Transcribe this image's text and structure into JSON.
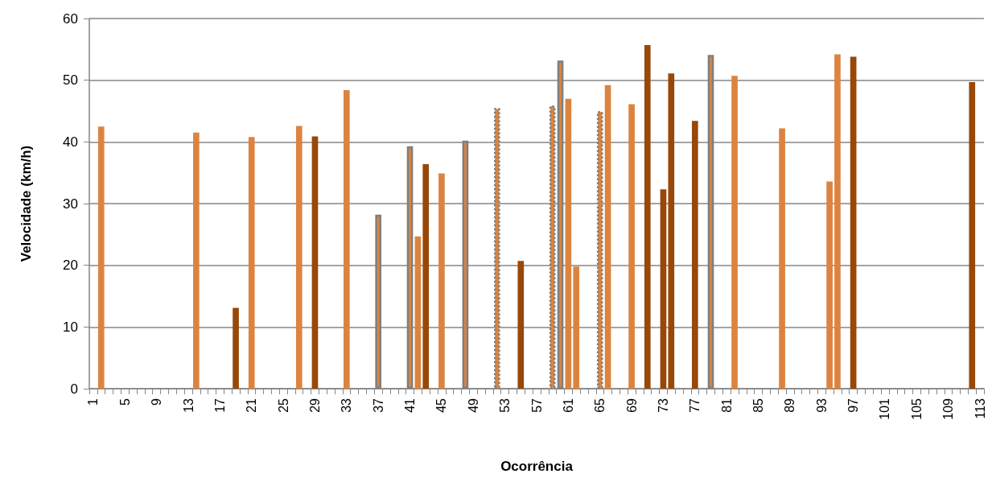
{
  "chart_data": {
    "type": "bar",
    "xlabel": "Ocorrência",
    "ylabel": "Velocidade (km/h)",
    "categories": [
      "1",
      null,
      null,
      null,
      "5",
      null,
      null,
      null,
      "9",
      null,
      null,
      null,
      "13",
      null,
      null,
      null,
      "17",
      null,
      null,
      null,
      "21",
      null,
      null,
      null,
      "25",
      null,
      null,
      null,
      "29",
      null,
      null,
      null,
      "33",
      null,
      null,
      null,
      "37",
      null,
      null,
      null,
      "41",
      null,
      null,
      null,
      "45",
      null,
      null,
      null,
      "49",
      null,
      null,
      null,
      "53",
      null,
      null,
      null,
      "57",
      null,
      null,
      null,
      "61",
      null,
      null,
      null,
      "65",
      null,
      null,
      null,
      "69",
      null,
      null,
      null,
      "73",
      null,
      null,
      null,
      "77",
      null,
      null,
      null,
      "81",
      null,
      null,
      null,
      "85",
      null,
      null,
      null,
      "89",
      null,
      null,
      null,
      "93",
      null,
      null,
      null,
      "97",
      null,
      null,
      null,
      "101",
      null,
      null,
      null,
      "105",
      null,
      null,
      null,
      "109",
      null,
      null,
      null,
      "113"
    ],
    "series": [
      {
        "color": "#dc843f",
        "values": [
          null,
          42.5,
          null,
          null,
          null,
          null,
          null,
          null,
          null,
          null,
          null,
          null,
          null,
          41.5,
          null,
          null,
          null,
          null,
          null,
          null,
          40.8,
          null,
          null,
          null,
          null,
          null,
          42.6,
          null,
          null,
          null,
          null,
          null,
          48.4,
          null,
          null,
          null,
          null,
          null,
          null,
          null,
          null,
          24.7,
          null,
          null,
          34.9,
          null,
          null,
          null,
          null,
          null,
          null,
          null,
          null,
          null,
          null,
          null,
          null,
          null,
          null,
          null,
          47.0,
          19.8,
          null,
          null,
          null,
          49.2,
          null,
          null,
          46.1,
          null,
          null,
          null,
          null,
          null,
          null,
          null,
          null,
          null,
          null,
          null,
          null,
          50.7,
          null,
          null,
          null,
          null,
          null,
          42.2,
          null,
          null,
          null,
          null,
          null,
          33.6,
          54.2,
          null,
          null,
          null,
          null,
          null,
          null,
          null,
          null,
          null,
          null,
          null,
          null,
          null,
          null,
          null,
          null,
          null,
          null
        ]
      },
      {
        "color": "#984808",
        "values": [
          null,
          null,
          null,
          null,
          null,
          null,
          null,
          null,
          null,
          null,
          null,
          null,
          null,
          null,
          null,
          null,
          null,
          null,
          13.1,
          null,
          null,
          null,
          null,
          null,
          null,
          null,
          null,
          null,
          40.9,
          null,
          null,
          null,
          null,
          null,
          null,
          null,
          null,
          null,
          null,
          null,
          null,
          null,
          36.4,
          null,
          null,
          null,
          null,
          null,
          null,
          null,
          null,
          null,
          null,
          null,
          20.7,
          null,
          null,
          null,
          null,
          null,
          null,
          null,
          null,
          null,
          null,
          null,
          null,
          null,
          null,
          null,
          55.7,
          null,
          32.3,
          51.1,
          null,
          null,
          43.4,
          null,
          null,
          null,
          null,
          null,
          null,
          null,
          null,
          null,
          null,
          null,
          null,
          null,
          null,
          null,
          null,
          null,
          null,
          null,
          53.8,
          null,
          null,
          null,
          null,
          null,
          null,
          null,
          null,
          null,
          null,
          null,
          null,
          null,
          null,
          49.7,
          null
        ]
      },
      {
        "color": "#dc843f",
        "line_style": "solid",
        "values": [
          null,
          null,
          null,
          null,
          null,
          null,
          null,
          null,
          null,
          null,
          null,
          null,
          null,
          null,
          null,
          null,
          null,
          null,
          null,
          null,
          null,
          null,
          null,
          null,
          null,
          null,
          null,
          null,
          null,
          null,
          null,
          null,
          null,
          null,
          null,
          null,
          28.2,
          null,
          null,
          null,
          39.3,
          null,
          null,
          null,
          null,
          null,
          null,
          40.2,
          null,
          null,
          null,
          null,
          null,
          null,
          null,
          null,
          null,
          null,
          null,
          53.2,
          null,
          null,
          null,
          null,
          null,
          null,
          null,
          null,
          null,
          null,
          null,
          null,
          null,
          null,
          null,
          null,
          null,
          null,
          54.1,
          null,
          null,
          null,
          null,
          null,
          null,
          null,
          null,
          null,
          null,
          null,
          null,
          null,
          null,
          null,
          null,
          null,
          null,
          null,
          null,
          null,
          null,
          null,
          null,
          null,
          null,
          null,
          null,
          null,
          null,
          null,
          null,
          null,
          null
        ]
      },
      {
        "color": "#dc843f",
        "line_style": "dotted",
        "values": [
          null,
          null,
          null,
          null,
          null,
          null,
          null,
          null,
          null,
          null,
          null,
          null,
          null,
          null,
          null,
          null,
          null,
          null,
          null,
          null,
          null,
          null,
          null,
          null,
          null,
          null,
          null,
          null,
          null,
          null,
          null,
          null,
          null,
          null,
          null,
          null,
          null,
          null,
          null,
          null,
          null,
          null,
          null,
          null,
          null,
          null,
          null,
          null,
          null,
          null,
          null,
          45.5,
          null,
          null,
          null,
          null,
          null,
          null,
          45.9,
          null,
          null,
          null,
          null,
          null,
          45.0,
          null,
          null,
          null,
          null,
          null,
          null,
          null,
          null,
          null,
          null,
          null,
          null,
          null,
          null,
          null,
          null,
          null,
          null,
          null,
          null,
          null,
          null,
          null,
          null,
          null,
          null,
          null,
          null,
          null,
          null,
          null,
          null,
          null,
          null,
          null,
          null,
          null,
          null,
          null,
          null,
          null,
          null,
          null,
          null,
          null,
          null,
          null,
          null
        ]
      }
    ],
    "ylim": [
      0,
      60
    ],
    "yticks": [
      0,
      10,
      20,
      30,
      40,
      50,
      60
    ],
    "grid": "y"
  }
}
